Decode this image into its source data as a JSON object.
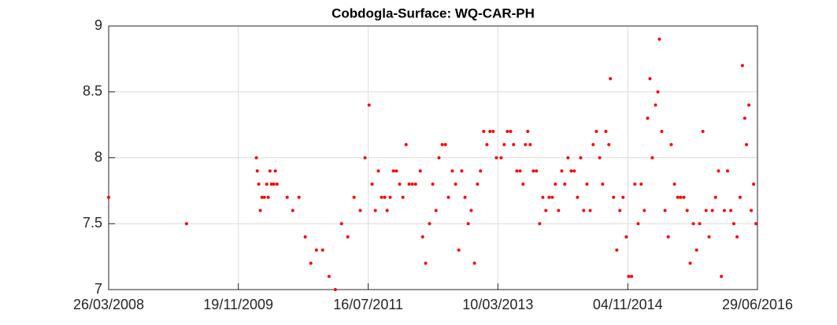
{
  "chart_data": {
    "type": "scatter",
    "title": "Cobdogla-Surface: WQ-CAR-PH",
    "series": [
      {
        "color": "#ff0000",
        "x": [
          "2008-03-26",
          "2009-03-23",
          "2010-02-11",
          "2010-02-15",
          "2010-02-22",
          "2010-03-01",
          "2010-03-09",
          "2010-03-20",
          "2010-03-31",
          "2010-04-07",
          "2010-04-15",
          "2010-04-22",
          "2010-05-03",
          "2010-05-10",
          "2010-05-18",
          "2010-07-04",
          "2010-07-30",
          "2010-08-28",
          "2010-09-26",
          "2010-10-22",
          "2010-11-17",
          "2010-12-16",
          "2011-01-15",
          "2011-02-13",
          "2011-03-14",
          "2011-04-12",
          "2011-05-11",
          "2011-06-09",
          "2011-07-01",
          "2011-07-20",
          "2011-08-03",
          "2011-08-18",
          "2011-09-01",
          "2011-09-16",
          "2011-10-01",
          "2011-10-12",
          "2011-10-26",
          "2011-11-10",
          "2011-11-24",
          "2011-12-09",
          "2011-12-24",
          "2012-01-08",
          "2012-01-22",
          "2012-02-06",
          "2012-02-21",
          "2012-03-14",
          "2012-03-25",
          "2012-04-08",
          "2012-04-26",
          "2012-05-11",
          "2012-05-26",
          "2012-06-09",
          "2012-06-24",
          "2012-07-09",
          "2012-07-23",
          "2012-08-10",
          "2012-08-25",
          "2012-09-09",
          "2012-09-23",
          "2012-10-08",
          "2012-10-23",
          "2012-11-06",
          "2012-11-21",
          "2012-12-05",
          "2012-12-19",
          "2013-01-03",
          "2013-01-18",
          "2013-02-01",
          "2013-02-16",
          "2013-03-03",
          "2013-03-25",
          "2013-04-08",
          "2013-04-23",
          "2013-05-08",
          "2013-05-22",
          "2013-06-06",
          "2013-06-21",
          "2013-07-05",
          "2013-07-16",
          "2013-07-27",
          "2013-08-07",
          "2013-08-22",
          "2013-09-05",
          "2013-09-20",
          "2013-10-05",
          "2013-10-19",
          "2013-11-03",
          "2013-11-18",
          "2013-12-02",
          "2013-12-17",
          "2014-01-01",
          "2014-01-15",
          "2014-01-30",
          "2014-02-14",
          "2014-02-28",
          "2014-03-15",
          "2014-03-30",
          "2014-04-13",
          "2014-04-28",
          "2014-05-13",
          "2014-05-27",
          "2014-06-11",
          "2014-06-26",
          "2014-07-10",
          "2014-07-25",
          "2014-08-08",
          "2014-08-15",
          "2014-08-30",
          "2014-09-14",
          "2014-09-28",
          "2014-10-13",
          "2014-10-28",
          "2014-11-08",
          "2014-11-22",
          "2014-12-07",
          "2014-12-22",
          "2015-01-05",
          "2015-01-20",
          "2015-02-04",
          "2015-02-15",
          "2015-02-26",
          "2015-03-13",
          "2015-03-24",
          "2015-03-31",
          "2015-04-11",
          "2015-04-26",
          "2015-05-11",
          "2015-05-25",
          "2015-06-09",
          "2015-06-24",
          "2015-07-08",
          "2015-07-23",
          "2015-08-07",
          "2015-08-21",
          "2015-09-05",
          "2015-09-20",
          "2015-10-04",
          "2015-10-19",
          "2015-11-03",
          "2015-11-17",
          "2015-12-02",
          "2015-12-17",
          "2015-12-31",
          "2016-01-13",
          "2016-01-27",
          "2016-02-11",
          "2016-02-26",
          "2016-03-11",
          "2016-03-26",
          "2016-04-09",
          "2016-04-20",
          "2016-05-01",
          "2016-05-09",
          "2016-05-20",
          "2016-05-31",
          "2016-06-11",
          "2016-06-22"
        ],
        "values": [
          7.7,
          7.5,
          8.0,
          7.9,
          7.8,
          7.6,
          7.7,
          7.7,
          7.8,
          7.7,
          7.9,
          7.8,
          7.8,
          7.9,
          7.8,
          7.7,
          7.6,
          7.7,
          7.4,
          7.2,
          7.3,
          7.3,
          7.1,
          7.0,
          7.5,
          7.4,
          7.7,
          7.6,
          8.0,
          8.4,
          7.8,
          7.6,
          7.9,
          7.7,
          7.7,
          7.6,
          7.7,
          7.9,
          7.9,
          7.8,
          7.7,
          8.1,
          7.8,
          7.8,
          7.8,
          7.9,
          7.4,
          7.2,
          7.5,
          7.8,
          7.6,
          8.0,
          8.1,
          8.1,
          7.7,
          7.9,
          7.8,
          7.3,
          7.9,
          7.7,
          7.5,
          7.6,
          7.2,
          7.8,
          7.9,
          8.2,
          8.1,
          8.2,
          8.2,
          8.0,
          8.0,
          8.1,
          8.2,
          8.2,
          8.1,
          7.9,
          7.9,
          7.8,
          8.1,
          8.2,
          8.1,
          7.9,
          7.9,
          7.5,
          7.7,
          7.6,
          7.7,
          7.7,
          7.8,
          7.6,
          7.9,
          7.8,
          8.0,
          7.9,
          7.9,
          7.7,
          8.0,
          7.6,
          7.8,
          7.6,
          8.1,
          8.2,
          8.0,
          7.8,
          8.2,
          8.1,
          8.6,
          7.7,
          7.3,
          7.6,
          7.7,
          7.4,
          7.1,
          7.1,
          7.8,
          7.5,
          7.8,
          7.6,
          8.3,
          8.6,
          8.0,
          8.4,
          8.5,
          8.9,
          8.2,
          7.6,
          7.4,
          8.1,
          7.8,
          7.7,
          7.7,
          7.7,
          7.6,
          7.2,
          7.5,
          7.3,
          7.5,
          8.2,
          7.6,
          7.4,
          7.6,
          7.7,
          7.9,
          7.1,
          7.6,
          7.9,
          7.6,
          7.5,
          7.4,
          7.7,
          8.7,
          8.3,
          8.1,
          8.4,
          7.6,
          7.8,
          7.5
        ]
      }
    ],
    "xlim": [
      "2008-03-26",
      "2016-06-29"
    ],
    "xticks": [
      {
        "value": "2008-03-26",
        "label": "26/03/2008"
      },
      {
        "value": "2009-11-19",
        "label": "19/11/2009"
      },
      {
        "value": "2011-07-16",
        "label": "16/07/2011"
      },
      {
        "value": "2013-03-10",
        "label": "10/03/2013"
      },
      {
        "value": "2014-11-04",
        "label": "04/11/2014"
      },
      {
        "value": "2016-06-29",
        "label": "29/06/2016"
      }
    ],
    "ylim": [
      7,
      9
    ],
    "yticks": [
      7,
      7.5,
      8,
      8.5,
      9
    ],
    "grid": true
  }
}
